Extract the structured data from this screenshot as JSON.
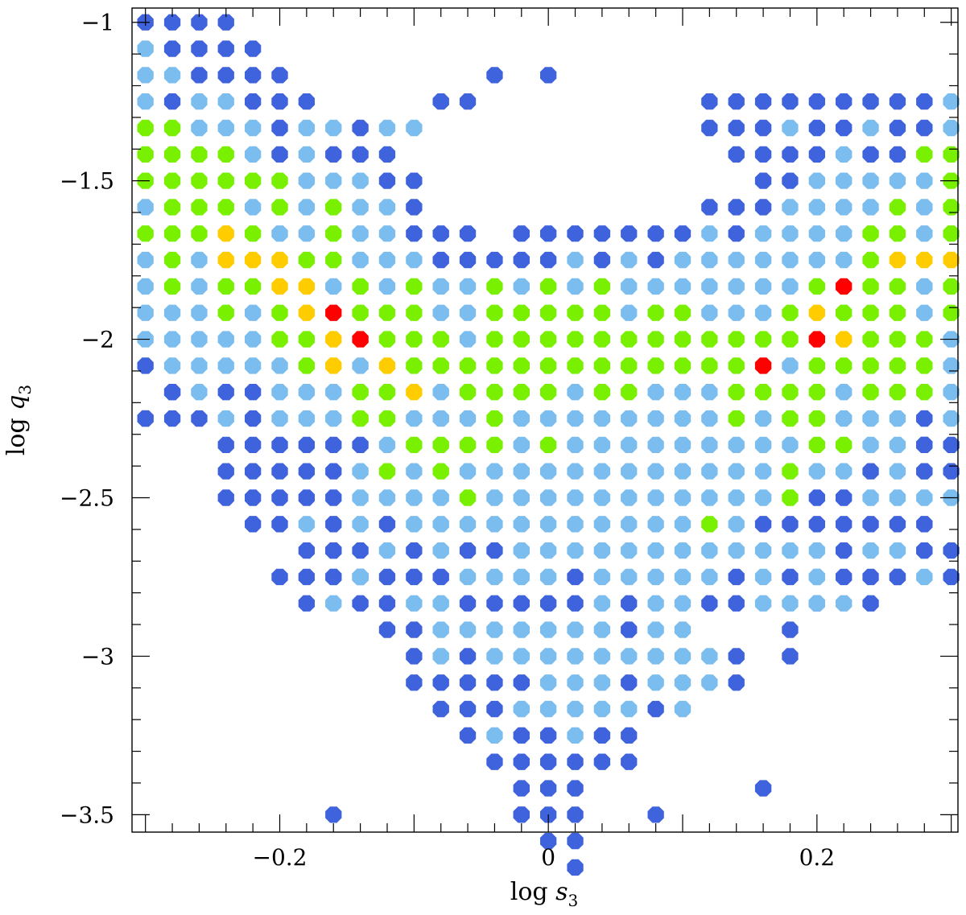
{
  "chart_data": {
    "type": "scatter",
    "xlabel": "log s3",
    "xlabel_parts": {
      "prefix": "log ",
      "var": "s",
      "sub": "3"
    },
    "ylabel": "log q3",
    "ylabel_parts": {
      "prefix": "log ",
      "var": "q",
      "sub": "3"
    },
    "xlim": [
      -0.31,
      0.305
    ],
    "ylim": [
      -3.555,
      -0.955
    ],
    "x_ticks_major": [
      -0.2,
      0,
      0.2
    ],
    "x_tick_labels": [
      "−0.2",
      "0",
      "0.2"
    ],
    "y_ticks_major": [
      -1,
      -1.5,
      -2,
      -2.5,
      -3,
      -3.5
    ],
    "y_tick_labels": [
      "−1",
      "−1.5",
      "−2",
      "−2.5",
      "−3",
      "−3.5"
    ],
    "grid": false,
    "grid_x_origin": -0.3,
    "grid_x_step": 0.02,
    "grid_y_origin": -1.0,
    "grid_y_step": -0.0833333,
    "level_colors": {
      "B": "#3f62dd",
      "L": "#7bbdee",
      "G": "#78f000",
      "Y": "#ffcc00",
      "R": "#ff0000"
    },
    "rows": [
      "BBBB",
      "LBBBB",
      "LLBBBB.........B",
      "LBLLBBB....B.........BBBBBBBBBL",
      "GGLLLBLLBLL..........BBBLBBLBBLB",
      "GGGGLBLBBB............BBBBLBBGGGGL",
      "GGGGGGLLLBB............BBLLLLLGGGGG",
      "LGGGLGLGLLB..........BBBLLLLGLGGGGG",
      "GGGYGLLGLLBBB.BBBBBBBLBLLLLGGLGYGGG",
      "LGLYYYGGLLLBBBBBLBLBLLLLLLLGYYYGGGG",
      "LGLGGYYLGLGLLGLGLGLLLLLLLGRGGLGGGGL",
      "LLLGLGYRGGGLLGGGGGLGGLLLGYGGGLGLGGG",
      "LLLLLGGYRGGGLGGGGGGGGGGGGRYGGGLGGGG",
      "BLLLLLGYLYGGGGGGGGGGGGGRLGGGGGLLGGL",
      "BLBBLLLGGYLGGGGLGGLLLGGGGLGGGLBLB",
      "BB.LBLLLGGLLLGLLLLLLLLGLGGLLLLLLL",
      "BBBBBBLGGGGLGLLLLLLLLLGGLLBL",
      "BBBBBLGLGLLLLLLLLLLLLGLLBLL",
      "BBBBBLLLLGLLLLLLLLLLLGBBLLLLL",
      "BBLBLBLLLLLLLLLLLGLBBBBBBB",
      "BBLBLBBLLLLLLLLLLLLLLLLBB",
      "BLBBBBLLLLBLLLLLBLBLBBBLBB",
      "BLBBLLBBBBBLBLLBBLLBL",
      "BBLLLLLLLBLL",
      "BLBLLLLLLLLL",
      "BBBBBLLLBLLL",
      "BBBLLLLLBL",
      "BLBBLBB",
      "BBBBBB",
      "BBB",
      "BBB",
      "BB",
      "B"
    ],
    "row_offsets": [
      0,
      0,
      0,
      0,
      0,
      0,
      0,
      0,
      0,
      0,
      0,
      0,
      0,
      0,
      1,
      0,
      3,
      3,
      3,
      4,
      7,
      6,
      6,
      9,
      10,
      10,
      11,
      12,
      13,
      14,
      14,
      15,
      16
    ],
    "extra_points": [
      {
        "x": -0.3,
        "y": -2.25,
        "level": "B"
      },
      {
        "x": -0.26,
        "y": -2.25,
        "level": "B"
      },
      {
        "x": -0.28,
        "y": -2.1667,
        "level": "B"
      },
      {
        "x": -0.2,
        "y": -2.75,
        "level": "B"
      },
      {
        "x": -0.16,
        "y": -2.75,
        "level": "B"
      },
      {
        "x": -0.14,
        "y": -2.75,
        "level": "L"
      },
      {
        "x": -0.16,
        "y": -2.6667,
        "level": "B"
      },
      {
        "x": -0.18,
        "y": -2.6667,
        "level": "B"
      },
      {
        "x": -0.16,
        "y": -3.5,
        "level": "B"
      },
      {
        "x": 0.28,
        "y": -2.25,
        "level": "B"
      },
      {
        "x": 0.3,
        "y": -2.4167,
        "level": "B"
      },
      {
        "x": 0.3,
        "y": -2.3333,
        "level": "B"
      },
      {
        "x": 0.28,
        "y": -2.3333,
        "level": "B"
      },
      {
        "x": 0.28,
        "y": -2.4167,
        "level": "B"
      },
      {
        "x": 0.28,
        "y": -2.6667,
        "level": "B"
      },
      {
        "x": 0.26,
        "y": -2.75,
        "level": "B"
      },
      {
        "x": 0.24,
        "y": -2.8333,
        "level": "B"
      },
      {
        "x": 0.22,
        "y": -2.6667,
        "level": "B"
      },
      {
        "x": 0.2,
        "y": -2.75,
        "level": "L"
      },
      {
        "x": 0.2,
        "y": -2.8333,
        "level": "L"
      },
      {
        "x": 0.18,
        "y": -2.9167,
        "level": "B"
      },
      {
        "x": 0.18,
        "y": -3.0,
        "level": "B"
      },
      {
        "x": 0.14,
        "y": -3.0,
        "level": "B"
      },
      {
        "x": 0.14,
        "y": -3.0833,
        "level": "B"
      },
      {
        "x": 0.16,
        "y": -3.4167,
        "level": "B"
      },
      {
        "x": 0.08,
        "y": -3.5,
        "level": "B"
      },
      {
        "x": -0.02,
        "y": -3.5,
        "level": "B"
      },
      {
        "x": -0.04,
        "y": -1.1667,
        "level": "B"
      },
      {
        "x": -0.06,
        "y": -1.25,
        "level": "B"
      }
    ]
  }
}
